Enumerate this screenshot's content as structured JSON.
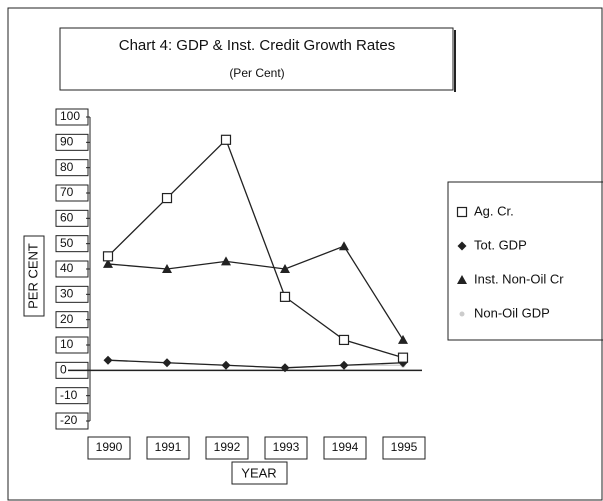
{
  "chart_data": {
    "type": "line",
    "title": "Chart 4: GDP & Inst. Credit Growth Rates",
    "subtitle": "(Per Cent)",
    "x_label": "YEAR",
    "y_label": "PER CENT",
    "categories": [
      "1990",
      "1991",
      "1992",
      "1993",
      "1994",
      "1995"
    ],
    "series": [
      {
        "name": "Ag. Cr.",
        "color": "#222222",
        "marker": "square",
        "values": [
          45,
          68,
          91,
          29,
          12,
          5
        ]
      },
      {
        "name": "Tot. GDP",
        "color": "#222222",
        "marker": "diamond",
        "values": [
          4,
          3,
          2,
          1,
          2,
          3
        ]
      },
      {
        "name": "Inst. Non-Oil Cr",
        "color": "#222222",
        "marker": "triangle",
        "values": [
          42,
          40,
          43,
          40,
          49,
          12
        ]
      },
      {
        "name": "Non-Oil GDP",
        "color": "#cccccc",
        "marker": "dot",
        "values": [
          4,
          3,
          2,
          1,
          2,
          2
        ]
      }
    ],
    "ylim": [
      -20,
      100
    ],
    "yticks": [
      -20,
      -10,
      0,
      10,
      20,
      30,
      40,
      50,
      60,
      70,
      80,
      90,
      100
    ],
    "grid": false,
    "legend": "right"
  }
}
